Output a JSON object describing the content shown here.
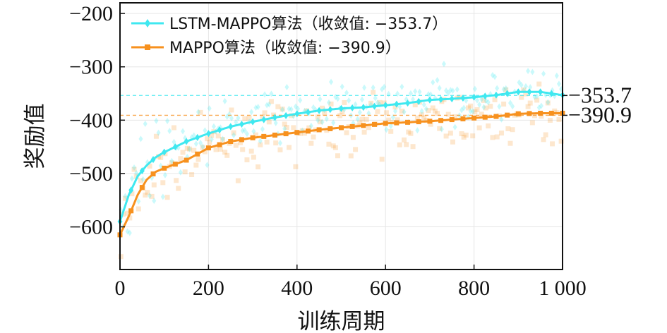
{
  "chart_data": {
    "type": "line",
    "title": "",
    "xlabel": "训练周期",
    "ylabel": "奖励值",
    "xlim": [
      0,
      1000
    ],
    "ylim": [
      -680,
      -180
    ],
    "x_ticks": [
      0,
      200,
      400,
      600,
      800,
      1000
    ],
    "x_tick_labels": [
      "0",
      "200",
      "400",
      "600",
      "800",
      "1 000"
    ],
    "y_ticks": [
      -200,
      -300,
      -400,
      -500,
      -600
    ],
    "y_tick_labels": [
      "−200",
      "−300",
      "−400",
      "−500",
      "−600"
    ],
    "grid": true,
    "legend_position": "top-left",
    "series": [
      {
        "name": "LSTM-MAPPO算法（收敛值: −353.7）",
        "color": "#3FE8F0",
        "marker": "diamond",
        "converged_value": -353.7,
        "converged_label": "−353.7",
        "x": [
          0,
          20,
          40,
          60,
          80,
          100,
          150,
          200,
          250,
          300,
          350,
          400,
          450,
          500,
          550,
          600,
          650,
          700,
          750,
          800,
          850,
          900,
          950,
          1000
        ],
        "values": [
          -590,
          -540,
          -505,
          -485,
          -470,
          -460,
          -440,
          -425,
          -412,
          -403,
          -395,
          -388,
          -382,
          -378,
          -376,
          -372,
          -368,
          -362,
          -360,
          -357,
          -353,
          -347,
          -347,
          -353
        ]
      },
      {
        "name": "MAPPO算法（收敛值: −390.9）",
        "color": "#F7911E",
        "marker": "square",
        "converged_value": -390.9,
        "converged_label": "−390.9",
        "x": [
          0,
          20,
          40,
          60,
          80,
          100,
          150,
          200,
          250,
          300,
          350,
          400,
          450,
          500,
          550,
          600,
          650,
          700,
          750,
          800,
          850,
          900,
          950,
          1000
        ],
        "values": [
          -615,
          -580,
          -540,
          -512,
          -497,
          -490,
          -475,
          -452,
          -440,
          -433,
          -428,
          -423,
          -418,
          -414,
          -410,
          -406,
          -404,
          -402,
          -399,
          -396,
          -393,
          -388,
          -387,
          -387
        ]
      }
    ]
  }
}
